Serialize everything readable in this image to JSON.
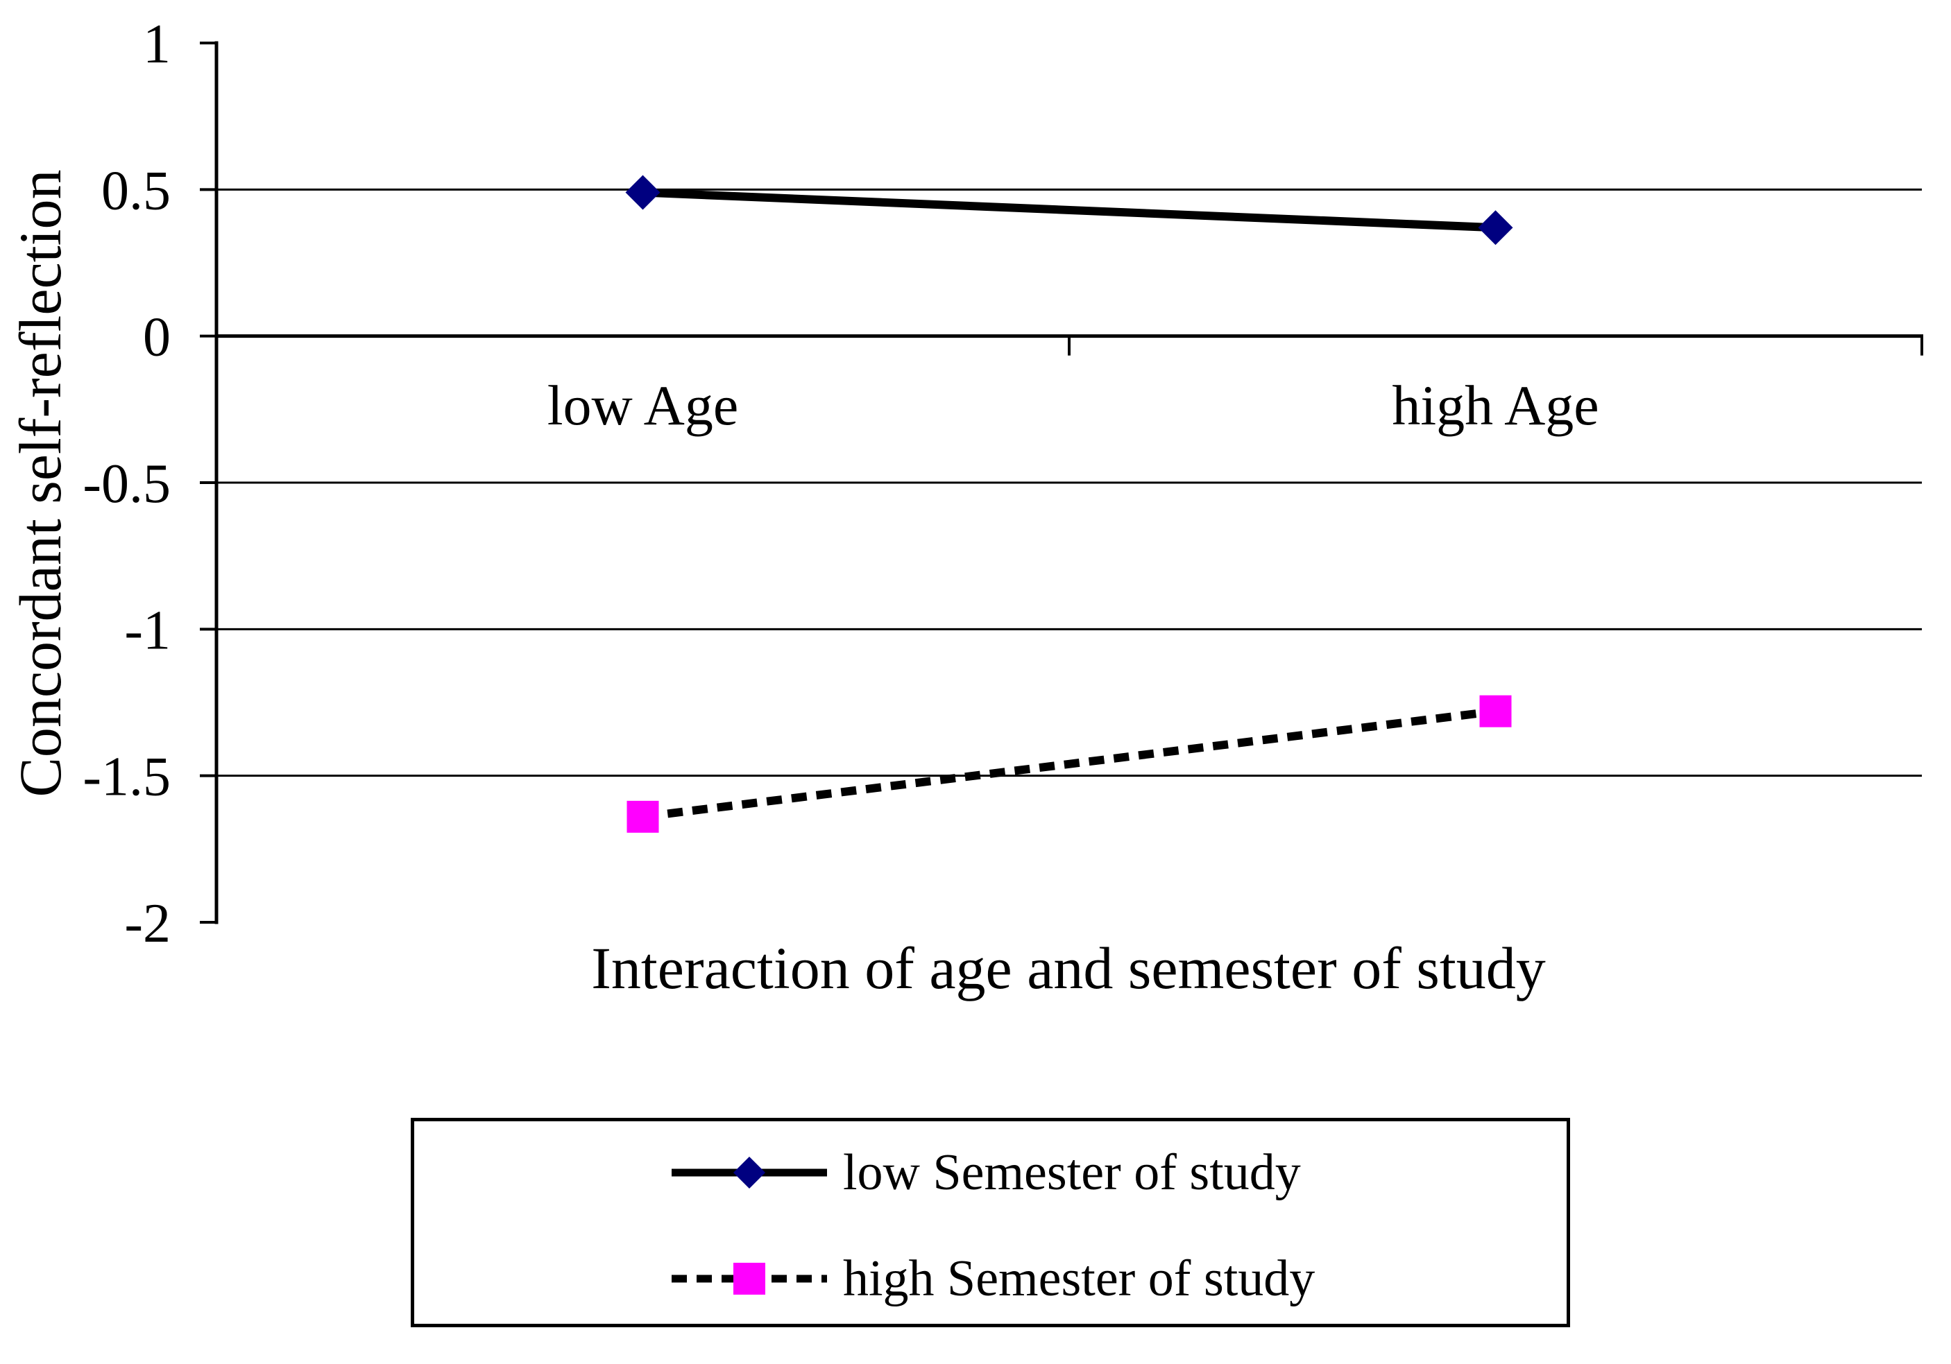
{
  "chart_data": {
    "type": "line",
    "title": "",
    "xlabel": "Interaction of age and semester of study",
    "ylabel": "Concordant self-reflection",
    "categories": [
      "low Age",
      "high Age"
    ],
    "series": [
      {
        "name": "low Semester of study",
        "values": [
          0.49,
          0.37
        ],
        "line_style": "solid",
        "line_color": "#000000",
        "marker": "diamond",
        "color": "#000080"
      },
      {
        "name": "high Semester of study",
        "values": [
          -1.64,
          -1.28
        ],
        "line_style": "dashed",
        "line_color": "#000000",
        "marker": "square",
        "color": "#FF00FF"
      }
    ],
    "ylim": [
      -2,
      1
    ],
    "yticks": [
      1,
      0.5,
      0,
      -0.5,
      -1,
      -1.5,
      -2
    ],
    "ytick_labels": [
      "1",
      "0.5",
      "0",
      "-0.5",
      "-1",
      "-1.5",
      "-2"
    ],
    "grid": true,
    "legend_position": "bottom-center",
    "axis_color": "#000000",
    "background_color": "#FFFFFF"
  }
}
